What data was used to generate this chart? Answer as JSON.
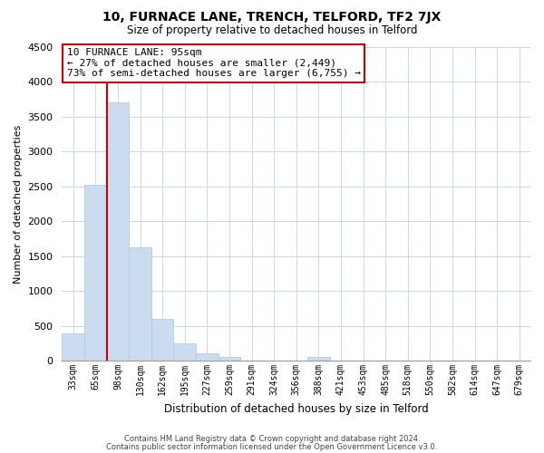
{
  "title": "10, FURNACE LANE, TRENCH, TELFORD, TF2 7JX",
  "subtitle": "Size of property relative to detached houses in Telford",
  "xlabel": "Distribution of detached houses by size in Telford",
  "ylabel": "Number of detached properties",
  "bar_labels": [
    "33sqm",
    "65sqm",
    "98sqm",
    "130sqm",
    "162sqm",
    "195sqm",
    "227sqm",
    "259sqm",
    "291sqm",
    "324sqm",
    "356sqm",
    "388sqm",
    "421sqm",
    "453sqm",
    "485sqm",
    "518sqm",
    "550sqm",
    "582sqm",
    "614sqm",
    "647sqm",
    "679sqm"
  ],
  "bar_values": [
    390,
    2520,
    3700,
    1630,
    600,
    245,
    105,
    55,
    0,
    0,
    0,
    55,
    0,
    0,
    0,
    0,
    0,
    0,
    0,
    0,
    0
  ],
  "bar_color": "#ccdcf0",
  "bar_edge_color": "#a8c4e0",
  "highlight_line_color": "#cc0000",
  "highlight_bar_index": 2,
  "ylim": [
    0,
    4500
  ],
  "yticks": [
    0,
    500,
    1000,
    1500,
    2000,
    2500,
    3000,
    3500,
    4000,
    4500
  ],
  "annotation_text_line1": "10 FURNACE LANE: 95sqm",
  "annotation_text_line2": "← 27% of detached houses are smaller (2,449)",
  "annotation_text_line3": "73% of semi-detached houses are larger (6,755) →",
  "footer_line1": "Contains HM Land Registry data © Crown copyright and database right 2024.",
  "footer_line2": "Contains public sector information licensed under the Open Government Licence v3.0.",
  "bg_color": "#ffffff",
  "grid_color": "#c8d8e8",
  "title_fontsize": 10,
  "subtitle_fontsize": 8.5,
  "xlabel_fontsize": 8.5,
  "ylabel_fontsize": 8,
  "tick_fontsize": 7,
  "ann_fontsize": 8,
  "footer_fontsize": 6
}
